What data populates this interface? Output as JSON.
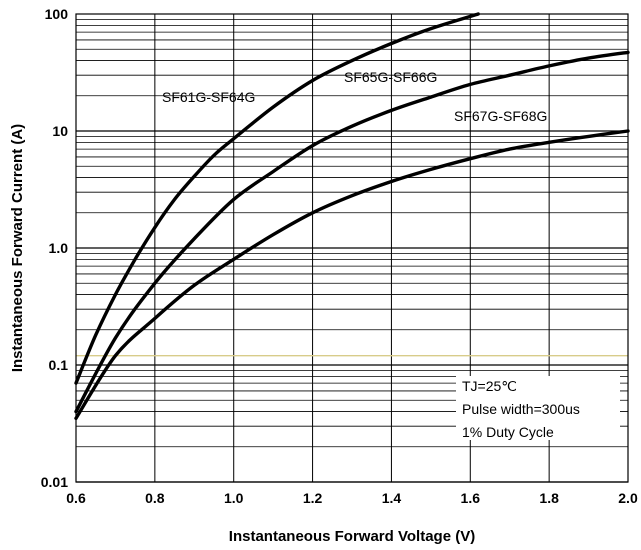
{
  "chart_data": {
    "type": "line",
    "xlabel": "Instantaneous Forward Voltage (V)",
    "ylabel": "Instantaneous Forward Current (A)",
    "xlim": [
      0.6,
      2.0
    ],
    "ylim": [
      0.01,
      100
    ],
    "yscale": "log",
    "grid": true,
    "xticks": [
      "0.6",
      "0.8",
      "1.0",
      "1.2",
      "1.4",
      "1.6",
      "1.8",
      "2.0"
    ],
    "yticks": [
      {
        "value": 100,
        "label": "100"
      },
      {
        "value": 10,
        "label": "10"
      },
      {
        "value": 1,
        "label": "1.0"
      },
      {
        "value": 0.1,
        "label": "0.1"
      },
      {
        "value": 0.01,
        "label": "0.01"
      }
    ],
    "series": [
      {
        "name": "SF61G-SF64G",
        "x": [
          0.6,
          0.65,
          0.7,
          0.75,
          0.8,
          0.85,
          0.9,
          0.95,
          1.0,
          1.1,
          1.2,
          1.3,
          1.4,
          1.5,
          1.62
        ],
        "y": [
          0.07,
          0.18,
          0.4,
          0.8,
          1.5,
          2.6,
          4.1,
          6.2,
          8.6,
          16,
          27,
          40,
          56,
          75,
          100
        ]
      },
      {
        "name": "SF65G-SF66G",
        "x": [
          0.6,
          0.7,
          0.8,
          0.9,
          1.0,
          1.1,
          1.2,
          1.3,
          1.4,
          1.5,
          1.6,
          1.7,
          1.8,
          1.9,
          2.0
        ],
        "y": [
          0.04,
          0.17,
          0.5,
          1.2,
          2.6,
          4.5,
          7.5,
          11,
          15,
          19.5,
          25,
          30,
          36,
          42,
          47
        ]
      },
      {
        "name": "SF67G-SF68G",
        "x": [
          0.6,
          0.7,
          0.8,
          0.9,
          1.0,
          1.1,
          1.2,
          1.3,
          1.4,
          1.5,
          1.6,
          1.7,
          1.8,
          1.9,
          2.0
        ],
        "y": [
          0.035,
          0.12,
          0.25,
          0.48,
          0.8,
          1.3,
          2.0,
          2.8,
          3.7,
          4.7,
          5.8,
          7.0,
          8.0,
          9.0,
          10.0
        ]
      }
    ],
    "annotations": [
      "TJ=25℃",
      "Pulse width=300us",
      "1% Duty Cycle"
    ]
  }
}
